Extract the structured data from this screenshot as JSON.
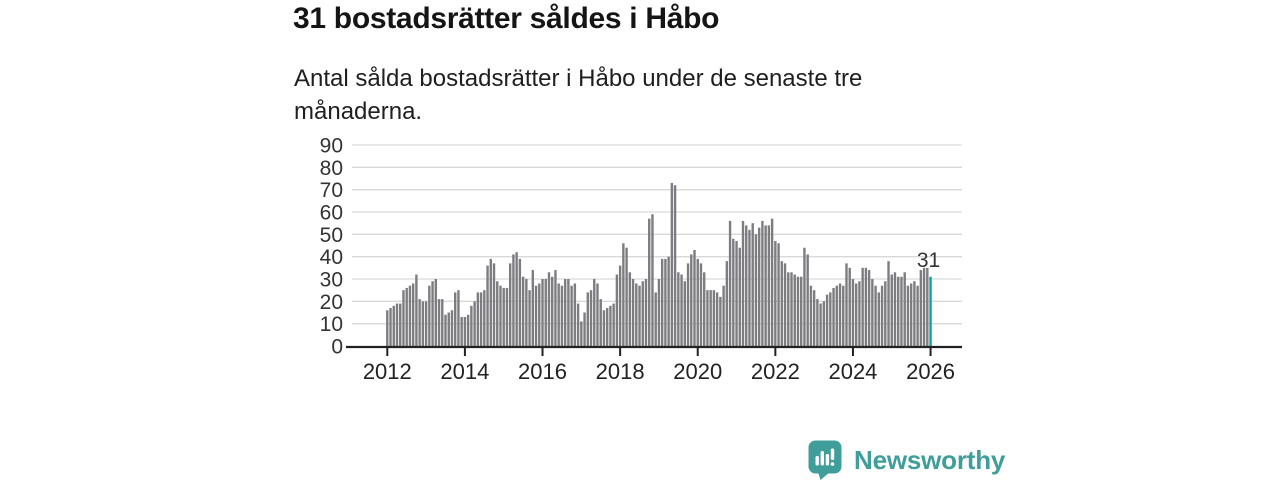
{
  "title": "31 bostadsrätter såldes i Håbo",
  "subtitle": "Antal sålda bostadsrätter i Håbo under de senaste tre månaderna.",
  "footer": {
    "brand": "Newsworthy",
    "brand_color": "#3f9e9a"
  },
  "chart_data": {
    "type": "bar",
    "title": "31 bostadsrätter såldes i Håbo",
    "xlabel": "",
    "ylabel": "",
    "x_period": {
      "start": "2012-01",
      "end": "2026-01",
      "interval": "monthly"
    },
    "x_tick_labels": [
      "2012",
      "2014",
      "2016",
      "2018",
      "2020",
      "2022",
      "2024",
      "2026"
    ],
    "y_ticks": [
      0,
      10,
      20,
      30,
      40,
      50,
      60,
      70,
      80,
      90
    ],
    "ylim": [
      0,
      90
    ],
    "grid": true,
    "gridline_color": "#d9d9d9",
    "axis_color": "#222222",
    "label_color": "#333333",
    "bar_color": "#7d7d81",
    "highlight_color": "#0ba39e",
    "highlight_index": 168,
    "highlight_value_label": "31",
    "values": [
      16,
      17,
      18,
      19,
      19,
      25,
      26,
      27,
      28,
      32,
      21,
      20,
      20,
      27,
      29,
      30,
      21,
      21,
      14,
      15,
      16,
      24,
      25,
      13,
      13,
      14,
      18,
      20,
      24,
      24,
      25,
      36,
      39,
      37,
      29,
      27,
      26,
      26,
      37,
      41,
      42,
      39,
      31,
      30,
      25,
      34,
      27,
      28,
      30,
      30,
      33,
      31,
      34,
      28,
      27,
      30,
      30,
      27,
      28,
      19,
      11,
      15,
      24,
      25,
      30,
      28,
      21,
      16,
      17,
      18,
      19,
      32,
      36,
      46,
      44,
      33,
      30,
      28,
      27,
      29,
      30,
      57,
      59,
      24,
      30,
      39,
      39,
      40,
      73,
      72,
      33,
      32,
      29,
      37,
      41,
      43,
      39,
      37,
      33,
      25,
      25,
      25,
      24,
      22,
      27,
      38,
      56,
      48,
      47,
      44,
      56,
      54,
      52,
      55,
      50,
      53,
      56,
      54,
      54,
      57,
      47,
      46,
      38,
      37,
      33,
      33,
      32,
      31,
      31,
      44,
      41,
      27,
      25,
      21,
      19,
      20,
      23,
      24,
      26,
      27,
      28,
      27,
      37,
      35,
      30,
      28,
      29,
      35,
      35,
      34,
      30,
      27,
      24,
      27,
      29,
      38,
      32,
      33,
      31,
      31,
      33,
      27,
      28,
      29,
      27,
      34,
      35,
      35,
      31
    ]
  }
}
